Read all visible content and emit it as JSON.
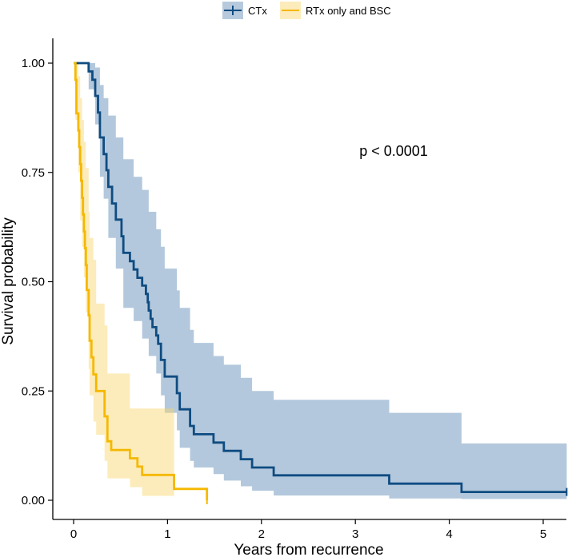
{
  "chart_data": {
    "type": "line",
    "title": "",
    "xlabel": "Years from recurrence",
    "ylabel": "Survival probability",
    "xlim": [
      0,
      5.25
    ],
    "ylim": [
      0,
      1.0
    ],
    "x_ticks": [
      0,
      1,
      2,
      3,
      4,
      5
    ],
    "x_tick_labels": [
      "0",
      "1",
      "2",
      "3",
      "4",
      "5"
    ],
    "y_ticks": [
      0,
      0.25,
      0.5,
      0.75,
      1.0
    ],
    "y_tick_labels": [
      "0.00",
      "0.25",
      "0.50",
      "0.75",
      "1.00"
    ],
    "grid": false,
    "legend_position": "top",
    "annotation": "p < 0.0001",
    "series": [
      {
        "name": "CTx",
        "color": "#0f4c81",
        "ci_color": "#4a7bab",
        "steps": [
          [
            0.0,
            1.0
          ],
          [
            0.16,
            0.981
          ],
          [
            0.2,
            0.962
          ],
          [
            0.23,
            0.925
          ],
          [
            0.26,
            0.887
          ],
          [
            0.28,
            0.83
          ],
          [
            0.32,
            0.792
          ],
          [
            0.35,
            0.755
          ],
          [
            0.37,
            0.717
          ],
          [
            0.41,
            0.679
          ],
          [
            0.45,
            0.642
          ],
          [
            0.51,
            0.604
          ],
          [
            0.53,
            0.566
          ],
          [
            0.6,
            0.547
          ],
          [
            0.64,
            0.528
          ],
          [
            0.68,
            0.509
          ],
          [
            0.73,
            0.491
          ],
          [
            0.77,
            0.472
          ],
          [
            0.79,
            0.453
          ],
          [
            0.8,
            0.434
          ],
          [
            0.82,
            0.415
          ],
          [
            0.84,
            0.396
          ],
          [
            0.88,
            0.377
          ],
          [
            0.9,
            0.358
          ],
          [
            0.93,
            0.321
          ],
          [
            0.97,
            0.283
          ],
          [
            1.1,
            0.245
          ],
          [
            1.13,
            0.208
          ],
          [
            1.24,
            0.17
          ],
          [
            1.28,
            0.151
          ],
          [
            1.49,
            0.132
          ],
          [
            1.6,
            0.113
          ],
          [
            1.78,
            0.094
          ],
          [
            1.9,
            0.075
          ],
          [
            2.13,
            0.057
          ],
          [
            3.36,
            0.038
          ],
          [
            4.13,
            0.019
          ],
          [
            5.25,
            0.019
          ]
        ],
        "ci_upper": [
          [
            0.0,
            1.0
          ],
          [
            0.16,
            1.0
          ],
          [
            0.23,
            0.99
          ],
          [
            0.28,
            0.95
          ],
          [
            0.32,
            0.92
          ],
          [
            0.37,
            0.88
          ],
          [
            0.45,
            0.83
          ],
          [
            0.53,
            0.78
          ],
          [
            0.64,
            0.74
          ],
          [
            0.73,
            0.71
          ],
          [
            0.8,
            0.66
          ],
          [
            0.88,
            0.62
          ],
          [
            0.93,
            0.58
          ],
          [
            0.97,
            0.53
          ],
          [
            1.1,
            0.48
          ],
          [
            1.13,
            0.44
          ],
          [
            1.24,
            0.39
          ],
          [
            1.28,
            0.36
          ],
          [
            1.49,
            0.33
          ],
          [
            1.6,
            0.31
          ],
          [
            1.78,
            0.28
          ],
          [
            1.9,
            0.25
          ],
          [
            2.13,
            0.23
          ],
          [
            3.36,
            0.2
          ],
          [
            4.13,
            0.13
          ],
          [
            5.25,
            0.13
          ]
        ],
        "ci_lower": [
          [
            0.0,
            1.0
          ],
          [
            0.16,
            0.94
          ],
          [
            0.23,
            0.86
          ],
          [
            0.28,
            0.74
          ],
          [
            0.32,
            0.69
          ],
          [
            0.37,
            0.6
          ],
          [
            0.45,
            0.53
          ],
          [
            0.53,
            0.44
          ],
          [
            0.64,
            0.41
          ],
          [
            0.73,
            0.37
          ],
          [
            0.8,
            0.33
          ],
          [
            0.88,
            0.29
          ],
          [
            0.93,
            0.24
          ],
          [
            0.97,
            0.2
          ],
          [
            1.1,
            0.16
          ],
          [
            1.13,
            0.12
          ],
          [
            1.24,
            0.09
          ],
          [
            1.28,
            0.075
          ],
          [
            1.49,
            0.06
          ],
          [
            1.6,
            0.045
          ],
          [
            1.78,
            0.032
          ],
          [
            1.9,
            0.022
          ],
          [
            2.13,
            0.011
          ],
          [
            3.36,
            0.004
          ],
          [
            4.13,
            0.003
          ],
          [
            5.25,
            0.003
          ]
        ]
      },
      {
        "name": "RTx only and BSC",
        "color": "#f5b800",
        "ci_color": "#f8d568",
        "steps": [
          [
            0.0,
            1.0
          ],
          [
            0.02,
            0.962
          ],
          [
            0.03,
            0.885
          ],
          [
            0.05,
            0.846
          ],
          [
            0.06,
            0.808
          ],
          [
            0.07,
            0.769
          ],
          [
            0.08,
            0.731
          ],
          [
            0.09,
            0.692
          ],
          [
            0.1,
            0.654
          ],
          [
            0.11,
            0.615
          ],
          [
            0.12,
            0.577
          ],
          [
            0.13,
            0.538
          ],
          [
            0.14,
            0.481
          ],
          [
            0.16,
            0.423
          ],
          [
            0.17,
            0.365
          ],
          [
            0.19,
            0.327
          ],
          [
            0.21,
            0.288
          ],
          [
            0.24,
            0.25
          ],
          [
            0.33,
            0.192
          ],
          [
            0.36,
            0.135
          ],
          [
            0.4,
            0.115
          ],
          [
            0.6,
            0.096
          ],
          [
            0.68,
            0.077
          ],
          [
            0.73,
            0.058
          ],
          [
            1.07,
            0.026
          ],
          [
            1.42,
            0.0
          ]
        ],
        "ci_upper": [
          [
            0.0,
            1.0
          ],
          [
            0.02,
            1.0
          ],
          [
            0.05,
            0.97
          ],
          [
            0.07,
            0.92
          ],
          [
            0.09,
            0.87
          ],
          [
            0.11,
            0.82
          ],
          [
            0.13,
            0.76
          ],
          [
            0.16,
            0.66
          ],
          [
            0.17,
            0.6
          ],
          [
            0.21,
            0.55
          ],
          [
            0.24,
            0.45
          ],
          [
            0.33,
            0.4
          ],
          [
            0.36,
            0.29
          ],
          [
            0.6,
            0.21
          ],
          [
            0.73,
            0.21
          ],
          [
            1.07,
            0.21
          ],
          [
            1.07,
            0.21
          ]
        ],
        "ci_lower": [
          [
            0.0,
            1.0
          ],
          [
            0.02,
            0.87
          ],
          [
            0.05,
            0.75
          ],
          [
            0.07,
            0.64
          ],
          [
            0.09,
            0.58
          ],
          [
            0.11,
            0.51
          ],
          [
            0.13,
            0.43
          ],
          [
            0.16,
            0.3
          ],
          [
            0.17,
            0.24
          ],
          [
            0.21,
            0.18
          ],
          [
            0.24,
            0.15
          ],
          [
            0.33,
            0.09
          ],
          [
            0.36,
            0.05
          ],
          [
            0.6,
            0.03
          ],
          [
            0.73,
            0.01
          ],
          [
            1.07,
            0.01
          ],
          [
            1.07,
            0.01
          ]
        ]
      }
    ]
  }
}
